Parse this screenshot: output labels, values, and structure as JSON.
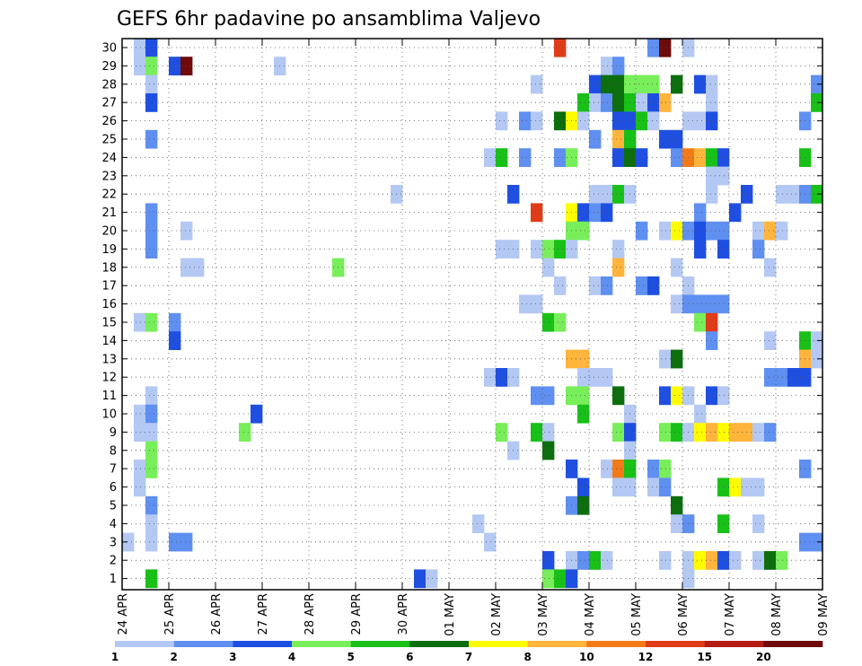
{
  "chart_data": {
    "type": "heatmap",
    "title": "GEFS 6hr padavine po ansamblima Valjevo",
    "xlabel": "",
    "ylabel": "",
    "y_ticks": [
      "1",
      "2",
      "3",
      "4",
      "5",
      "6",
      "7",
      "8",
      "9",
      "10",
      "11",
      "12",
      "13",
      "14",
      "15",
      "16",
      "17",
      "18",
      "19",
      "20",
      "21",
      "22",
      "23",
      "24",
      "25",
      "26",
      "27",
      "28",
      "29",
      "30"
    ],
    "x_ticks": [
      "24 APR",
      "25 APR",
      "26 APR",
      "27 APR",
      "28 APR",
      "29 APR",
      "30 APR",
      "01 MAY",
      "02 MAY",
      "03 MAY",
      "04 MAY",
      "05 MAY",
      "06 MAY",
      "07 MAY",
      "08 MAY",
      "09 MAY"
    ],
    "steps_per_day": 4,
    "grid": true,
    "colorbar": {
      "bounds": [
        "1",
        "2",
        "3",
        "4",
        "5",
        "6",
        "7",
        "8",
        "10",
        "12",
        "15",
        "20"
      ],
      "colors": [
        "#b4c8f4",
        "#5f8ff0",
        "#1f4fe0",
        "#78ee5a",
        "#18c018",
        "#0c6e0c",
        "#fffc00",
        "#ffb43c",
        "#f47a18",
        "#e03c18",
        "#b41c14",
        "#6e0a0a"
      ]
    },
    "cells": [
      {
        "m": 30,
        "s": 1,
        "c": 1
      },
      {
        "m": 30,
        "s": 2,
        "c": 3
      },
      {
        "m": 30,
        "s": 37,
        "c": 10
      },
      {
        "m": 30,
        "s": 45,
        "c": 2
      },
      {
        "m": 30,
        "s": 46,
        "c": 12
      },
      {
        "m": 30,
        "s": 48,
        "c": 1
      },
      {
        "m": 29,
        "s": 1,
        "c": 1
      },
      {
        "m": 29,
        "s": 2,
        "c": 4
      },
      {
        "m": 29,
        "s": 4,
        "c": 3
      },
      {
        "m": 29,
        "s": 5,
        "c": 12
      },
      {
        "m": 29,
        "s": 13,
        "c": 1
      },
      {
        "m": 29,
        "s": 41,
        "c": 1
      },
      {
        "m": 29,
        "s": 42,
        "c": 2
      },
      {
        "m": 28,
        "s": 2,
        "c": 1
      },
      {
        "m": 28,
        "s": 35,
        "c": 1
      },
      {
        "m": 28,
        "s": 40,
        "c": 3
      },
      {
        "m": 28,
        "s": 41,
        "c": 6
      },
      {
        "m": 28,
        "s": 42,
        "c": 6
      },
      {
        "m": 28,
        "s": 43,
        "c": 4
      },
      {
        "m": 28,
        "s": 44,
        "c": 4
      },
      {
        "m": 28,
        "s": 45,
        "c": 4
      },
      {
        "m": 28,
        "s": 47,
        "c": 6
      },
      {
        "m": 28,
        "s": 49,
        "c": 3
      },
      {
        "m": 28,
        "s": 50,
        "c": 1
      },
      {
        "m": 28,
        "s": 59,
        "c": 2
      },
      {
        "m": 27,
        "s": 2,
        "c": 3
      },
      {
        "m": 27,
        "s": 39,
        "c": 5
      },
      {
        "m": 27,
        "s": 40,
        "c": 1
      },
      {
        "m": 27,
        "s": 41,
        "c": 2
      },
      {
        "m": 27,
        "s": 42,
        "c": 6
      },
      {
        "m": 27,
        "s": 43,
        "c": 5
      },
      {
        "m": 27,
        "s": 44,
        "c": 1
      },
      {
        "m": 27,
        "s": 45,
        "c": 3
      },
      {
        "m": 27,
        "s": 46,
        "c": 8
      },
      {
        "m": 27,
        "s": 50,
        "c": 1
      },
      {
        "m": 27,
        "s": 59,
        "c": 5
      },
      {
        "m": 26,
        "s": 32,
        "c": 1
      },
      {
        "m": 26,
        "s": 34,
        "c": 2
      },
      {
        "m": 26,
        "s": 35,
        "c": 1
      },
      {
        "m": 26,
        "s": 37,
        "c": 6
      },
      {
        "m": 26,
        "s": 38,
        "c": 7
      },
      {
        "m": 26,
        "s": 39,
        "c": 1
      },
      {
        "m": 26,
        "s": 42,
        "c": 3
      },
      {
        "m": 26,
        "s": 43,
        "c": 3
      },
      {
        "m": 26,
        "s": 44,
        "c": 5
      },
      {
        "m": 26,
        "s": 45,
        "c": 1
      },
      {
        "m": 26,
        "s": 48,
        "c": 1
      },
      {
        "m": 26,
        "s": 49,
        "c": 1
      },
      {
        "m": 26,
        "s": 50,
        "c": 3
      },
      {
        "m": 26,
        "s": 58,
        "c": 2
      },
      {
        "m": 25,
        "s": 2,
        "c": 2
      },
      {
        "m": 25,
        "s": 40,
        "c": 2
      },
      {
        "m": 25,
        "s": 42,
        "c": 8
      },
      {
        "m": 25,
        "s": 43,
        "c": 5
      },
      {
        "m": 25,
        "s": 46,
        "c": 3
      },
      {
        "m": 25,
        "s": 47,
        "c": 3
      },
      {
        "m": 24,
        "s": 31,
        "c": 1
      },
      {
        "m": 24,
        "s": 32,
        "c": 5
      },
      {
        "m": 24,
        "s": 34,
        "c": 2
      },
      {
        "m": 24,
        "s": 37,
        "c": 2
      },
      {
        "m": 24,
        "s": 38,
        "c": 4
      },
      {
        "m": 24,
        "s": 42,
        "c": 3
      },
      {
        "m": 24,
        "s": 43,
        "c": 6
      },
      {
        "m": 24,
        "s": 44,
        "c": 3
      },
      {
        "m": 24,
        "s": 47,
        "c": 2
      },
      {
        "m": 24,
        "s": 48,
        "c": 9
      },
      {
        "m": 24,
        "s": 49,
        "c": 8
      },
      {
        "m": 24,
        "s": 50,
        "c": 5
      },
      {
        "m": 24,
        "s": 51,
        "c": 3
      },
      {
        "m": 24,
        "s": 58,
        "c": 5
      },
      {
        "m": 23,
        "s": 50,
        "c": 1
      },
      {
        "m": 23,
        "s": 51,
        "c": 1
      },
      {
        "m": 22,
        "s": 23,
        "c": 1
      },
      {
        "m": 22,
        "s": 33,
        "c": 3
      },
      {
        "m": 22,
        "s": 40,
        "c": 1
      },
      {
        "m": 22,
        "s": 41,
        "c": 1
      },
      {
        "m": 22,
        "s": 42,
        "c": 5
      },
      {
        "m": 22,
        "s": 43,
        "c": 1
      },
      {
        "m": 22,
        "s": 50,
        "c": 1
      },
      {
        "m": 22,
        "s": 53,
        "c": 3
      },
      {
        "m": 22,
        "s": 56,
        "c": 1
      },
      {
        "m": 22,
        "s": 57,
        "c": 1
      },
      {
        "m": 22,
        "s": 58,
        "c": 2
      },
      {
        "m": 22,
        "s": 59,
        "c": 5
      },
      {
        "m": 21,
        "s": 2,
        "c": 2
      },
      {
        "m": 21,
        "s": 35,
        "c": 10
      },
      {
        "m": 21,
        "s": 38,
        "c": 7
      },
      {
        "m": 21,
        "s": 39,
        "c": 3
      },
      {
        "m": 21,
        "s": 40,
        "c": 2
      },
      {
        "m": 21,
        "s": 41,
        "c": 3
      },
      {
        "m": 21,
        "s": 49,
        "c": 2
      },
      {
        "m": 21,
        "s": 52,
        "c": 3
      },
      {
        "m": 20,
        "s": 2,
        "c": 2
      },
      {
        "m": 20,
        "s": 5,
        "c": 1
      },
      {
        "m": 20,
        "s": 38,
        "c": 4
      },
      {
        "m": 20,
        "s": 39,
        "c": 4
      },
      {
        "m": 20,
        "s": 44,
        "c": 2
      },
      {
        "m": 20,
        "s": 46,
        "c": 1
      },
      {
        "m": 20,
        "s": 47,
        "c": 7
      },
      {
        "m": 20,
        "s": 48,
        "c": 2
      },
      {
        "m": 20,
        "s": 49,
        "c": 3
      },
      {
        "m": 20,
        "s": 50,
        "c": 2
      },
      {
        "m": 20,
        "s": 51,
        "c": 2
      },
      {
        "m": 20,
        "s": 54,
        "c": 1
      },
      {
        "m": 20,
        "s": 55,
        "c": 8
      },
      {
        "m": 20,
        "s": 56,
        "c": 1
      },
      {
        "m": 19,
        "s": 2,
        "c": 2
      },
      {
        "m": 19,
        "s": 32,
        "c": 1
      },
      {
        "m": 19,
        "s": 33,
        "c": 1
      },
      {
        "m": 19,
        "s": 35,
        "c": 1
      },
      {
        "m": 19,
        "s": 36,
        "c": 4
      },
      {
        "m": 19,
        "s": 37,
        "c": 5
      },
      {
        "m": 19,
        "s": 38,
        "c": 1
      },
      {
        "m": 19,
        "s": 42,
        "c": 1
      },
      {
        "m": 19,
        "s": 49,
        "c": 3
      },
      {
        "m": 19,
        "s": 51,
        "c": 3
      },
      {
        "m": 19,
        "s": 54,
        "c": 2
      },
      {
        "m": 18,
        "s": 5,
        "c": 1
      },
      {
        "m": 18,
        "s": 6,
        "c": 1
      },
      {
        "m": 18,
        "s": 18,
        "c": 4
      },
      {
        "m": 18,
        "s": 36,
        "c": 1
      },
      {
        "m": 18,
        "s": 42,
        "c": 8
      },
      {
        "m": 18,
        "s": 47,
        "c": 1
      },
      {
        "m": 18,
        "s": 55,
        "c": 1
      },
      {
        "m": 17,
        "s": 37,
        "c": 1
      },
      {
        "m": 17,
        "s": 40,
        "c": 1
      },
      {
        "m": 17,
        "s": 41,
        "c": 2
      },
      {
        "m": 17,
        "s": 44,
        "c": 2
      },
      {
        "m": 17,
        "s": 45,
        "c": 3
      },
      {
        "m": 17,
        "s": 48,
        "c": 1
      },
      {
        "m": 16,
        "s": 34,
        "c": 1
      },
      {
        "m": 16,
        "s": 35,
        "c": 1
      },
      {
        "m": 16,
        "s": 47,
        "c": 1
      },
      {
        "m": 16,
        "s": 48,
        "c": 2
      },
      {
        "m": 16,
        "s": 49,
        "c": 2
      },
      {
        "m": 16,
        "s": 50,
        "c": 2
      },
      {
        "m": 16,
        "s": 51,
        "c": 2
      },
      {
        "m": 15,
        "s": 1,
        "c": 1
      },
      {
        "m": 15,
        "s": 2,
        "c": 4
      },
      {
        "m": 15,
        "s": 4,
        "c": 2
      },
      {
        "m": 15,
        "s": 36,
        "c": 5
      },
      {
        "m": 15,
        "s": 37,
        "c": 4
      },
      {
        "m": 15,
        "s": 49,
        "c": 4
      },
      {
        "m": 15,
        "s": 50,
        "c": 10
      },
      {
        "m": 14,
        "s": 4,
        "c": 3
      },
      {
        "m": 14,
        "s": 50,
        "c": 2
      },
      {
        "m": 14,
        "s": 55,
        "c": 1
      },
      {
        "m": 14,
        "s": 58,
        "c": 5
      },
      {
        "m": 14,
        "s": 59,
        "c": 1
      },
      {
        "m": 13,
        "s": 38,
        "c": 8
      },
      {
        "m": 13,
        "s": 39,
        "c": 8
      },
      {
        "m": 13,
        "s": 46,
        "c": 1
      },
      {
        "m": 13,
        "s": 47,
        "c": 6
      },
      {
        "m": 13,
        "s": 58,
        "c": 8
      },
      {
        "m": 13,
        "s": 59,
        "c": 1
      },
      {
        "m": 12,
        "s": 31,
        "c": 1
      },
      {
        "m": 12,
        "s": 32,
        "c": 3
      },
      {
        "m": 12,
        "s": 33,
        "c": 1
      },
      {
        "m": 12,
        "s": 39,
        "c": 1
      },
      {
        "m": 12,
        "s": 40,
        "c": 1
      },
      {
        "m": 12,
        "s": 41,
        "c": 1
      },
      {
        "m": 12,
        "s": 55,
        "c": 2
      },
      {
        "m": 12,
        "s": 56,
        "c": 2
      },
      {
        "m": 12,
        "s": 57,
        "c": 3
      },
      {
        "m": 12,
        "s": 58,
        "c": 3
      },
      {
        "m": 11,
        "s": 2,
        "c": 1
      },
      {
        "m": 11,
        "s": 35,
        "c": 2
      },
      {
        "m": 11,
        "s": 36,
        "c": 2
      },
      {
        "m": 11,
        "s": 38,
        "c": 4
      },
      {
        "m": 11,
        "s": 39,
        "c": 4
      },
      {
        "m": 11,
        "s": 42,
        "c": 6
      },
      {
        "m": 11,
        "s": 46,
        "c": 3
      },
      {
        "m": 11,
        "s": 47,
        "c": 7
      },
      {
        "m": 11,
        "s": 48,
        "c": 1
      },
      {
        "m": 11,
        "s": 50,
        "c": 3
      },
      {
        "m": 11,
        "s": 51,
        "c": 1
      },
      {
        "m": 10,
        "s": 1,
        "c": 1
      },
      {
        "m": 10,
        "s": 2,
        "c": 2
      },
      {
        "m": 10,
        "s": 11,
        "c": 3
      },
      {
        "m": 10,
        "s": 39,
        "c": 5
      },
      {
        "m": 10,
        "s": 43,
        "c": 1
      },
      {
        "m": 10,
        "s": 49,
        "c": 1
      },
      {
        "m": 9,
        "s": 1,
        "c": 1
      },
      {
        "m": 9,
        "s": 2,
        "c": 1
      },
      {
        "m": 9,
        "s": 10,
        "c": 4
      },
      {
        "m": 9,
        "s": 32,
        "c": 4
      },
      {
        "m": 9,
        "s": 35,
        "c": 5
      },
      {
        "m": 9,
        "s": 36,
        "c": 1
      },
      {
        "m": 9,
        "s": 42,
        "c": 4
      },
      {
        "m": 9,
        "s": 43,
        "c": 3
      },
      {
        "m": 9,
        "s": 46,
        "c": 4
      },
      {
        "m": 9,
        "s": 47,
        "c": 5
      },
      {
        "m": 9,
        "s": 48,
        "c": 1
      },
      {
        "m": 9,
        "s": 49,
        "c": 7
      },
      {
        "m": 9,
        "s": 50,
        "c": 8
      },
      {
        "m": 9,
        "s": 51,
        "c": 7
      },
      {
        "m": 9,
        "s": 52,
        "c": 8
      },
      {
        "m": 9,
        "s": 53,
        "c": 8
      },
      {
        "m": 9,
        "s": 54,
        "c": 1
      },
      {
        "m": 9,
        "s": 55,
        "c": 2
      },
      {
        "m": 8,
        "s": 2,
        "c": 4
      },
      {
        "m": 8,
        "s": 33,
        "c": 1
      },
      {
        "m": 8,
        "s": 36,
        "c": 6
      },
      {
        "m": 8,
        "s": 43,
        "c": 1
      },
      {
        "m": 7,
        "s": 1,
        "c": 1
      },
      {
        "m": 7,
        "s": 2,
        "c": 4
      },
      {
        "m": 7,
        "s": 38,
        "c": 3
      },
      {
        "m": 7,
        "s": 41,
        "c": 1
      },
      {
        "m": 7,
        "s": 42,
        "c": 9
      },
      {
        "m": 7,
        "s": 43,
        "c": 5
      },
      {
        "m": 7,
        "s": 45,
        "c": 2
      },
      {
        "m": 7,
        "s": 46,
        "c": 4
      },
      {
        "m": 7,
        "s": 58,
        "c": 2
      },
      {
        "m": 6,
        "s": 1,
        "c": 1
      },
      {
        "m": 6,
        "s": 39,
        "c": 3
      },
      {
        "m": 6,
        "s": 42,
        "c": 1
      },
      {
        "m": 6,
        "s": 43,
        "c": 1
      },
      {
        "m": 6,
        "s": 45,
        "c": 1
      },
      {
        "m": 6,
        "s": 46,
        "c": 2
      },
      {
        "m": 6,
        "s": 51,
        "c": 5
      },
      {
        "m": 6,
        "s": 52,
        "c": 7
      },
      {
        "m": 6,
        "s": 53,
        "c": 1
      },
      {
        "m": 6,
        "s": 54,
        "c": 1
      },
      {
        "m": 5,
        "s": 2,
        "c": 2
      },
      {
        "m": 5,
        "s": 38,
        "c": 2
      },
      {
        "m": 5,
        "s": 39,
        "c": 6
      },
      {
        "m": 5,
        "s": 47,
        "c": 6
      },
      {
        "m": 4,
        "s": 2,
        "c": 1
      },
      {
        "m": 4,
        "s": 30,
        "c": 1
      },
      {
        "m": 4,
        "s": 47,
        "c": 1
      },
      {
        "m": 4,
        "s": 48,
        "c": 2
      },
      {
        "m": 4,
        "s": 51,
        "c": 5
      },
      {
        "m": 4,
        "s": 54,
        "c": 1
      },
      {
        "m": 3,
        "s": 0,
        "c": 1
      },
      {
        "m": 3,
        "s": 2,
        "c": 1
      },
      {
        "m": 3,
        "s": 4,
        "c": 2
      },
      {
        "m": 3,
        "s": 5,
        "c": 2
      },
      {
        "m": 3,
        "s": 31,
        "c": 1
      },
      {
        "m": 3,
        "s": 58,
        "c": 2
      },
      {
        "m": 3,
        "s": 59,
        "c": 2
      },
      {
        "m": 2,
        "s": 36,
        "c": 3
      },
      {
        "m": 2,
        "s": 38,
        "c": 1
      },
      {
        "m": 2,
        "s": 39,
        "c": 2
      },
      {
        "m": 2,
        "s": 40,
        "c": 5
      },
      {
        "m": 2,
        "s": 41,
        "c": 1
      },
      {
        "m": 2,
        "s": 46,
        "c": 1
      },
      {
        "m": 2,
        "s": 48,
        "c": 1
      },
      {
        "m": 2,
        "s": 49,
        "c": 7
      },
      {
        "m": 2,
        "s": 50,
        "c": 8
      },
      {
        "m": 2,
        "s": 51,
        "c": 3
      },
      {
        "m": 2,
        "s": 52,
        "c": 1
      },
      {
        "m": 2,
        "s": 54,
        "c": 1
      },
      {
        "m": 2,
        "s": 55,
        "c": 6
      },
      {
        "m": 2,
        "s": 56,
        "c": 4
      },
      {
        "m": 1,
        "s": 2,
        "c": 5
      },
      {
        "m": 1,
        "s": 25,
        "c": 3
      },
      {
        "m": 1,
        "s": 26,
        "c": 1
      },
      {
        "m": 1,
        "s": 36,
        "c": 4
      },
      {
        "m": 1,
        "s": 37,
        "c": 5
      },
      {
        "m": 1,
        "s": 38,
        "c": 3
      },
      {
        "m": 1,
        "s": 48,
        "c": 1
      }
    ]
  }
}
